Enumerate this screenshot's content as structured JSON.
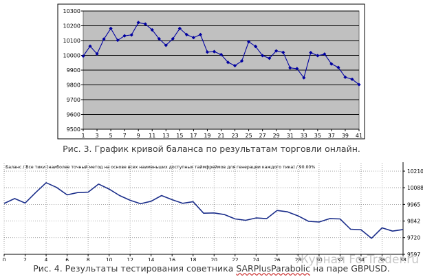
{
  "chart_data": [
    {
      "type": "line",
      "title": "",
      "xlabel": "",
      "ylabel": "",
      "xlim": [
        1,
        41
      ],
      "ylim": [
        9500,
        10300
      ],
      "x_tick_labels": [
        "1",
        "3",
        "5",
        "7",
        "9",
        "11",
        "13",
        "15",
        "17",
        "19",
        "21",
        "23",
        "25",
        "27",
        "29",
        "31",
        "33",
        "35",
        "37",
        "39",
        "41"
      ],
      "y_tick_labels": [
        "9500",
        "9600",
        "9700",
        "9800",
        "9900",
        "10000",
        "10100",
        "10200",
        "10300"
      ],
      "grid": true,
      "plot_background": "#c0c0c0",
      "series": [
        {
          "color": "#0000a0",
          "x": [
            1,
            2,
            3,
            4,
            5,
            6,
            7,
            8,
            9,
            10,
            11,
            12,
            13,
            14,
            15,
            16,
            17,
            18,
            19,
            20,
            21,
            22,
            23,
            24,
            25,
            26,
            27,
            28,
            29,
            30,
            31,
            32,
            33,
            34,
            35,
            36,
            37,
            38,
            39,
            40,
            41
          ],
          "values": [
            9995,
            10062,
            10010,
            10110,
            10182,
            10102,
            10132,
            10138,
            10222,
            10212,
            10172,
            10112,
            10068,
            10112,
            10182,
            10140,
            10120,
            10140,
            10022,
            10025,
            10005,
            9952,
            9930,
            9962,
            10092,
            10060,
            9998,
            9980,
            10030,
            10020,
            9915,
            9910,
            9848,
            10018,
            9998,
            10008,
            9942,
            9918,
            9852,
            9838,
            9802
          ]
        }
      ]
    },
    {
      "type": "line",
      "title": "Баланс / Все тики (наиболее точный метод на основе всех наименьших доступных таймфреймов для генерации каждого тика) / 90.00%",
      "xlabel": "",
      "ylabel": "",
      "xlim": [
        0,
        38
      ],
      "ylim": [
        9597,
        10210
      ],
      "x_tick_labels": [
        "0",
        "2",
        "4",
        "6",
        "8",
        "10",
        "12",
        "14",
        "16",
        "18",
        "20",
        "22",
        "24",
        "26",
        "28",
        "30",
        "32",
        "34",
        "36",
        "38"
      ],
      "y_tick_labels": [
        "9597",
        "9720",
        "9842",
        "9965",
        "10088",
        "10210"
      ],
      "grid": true,
      "grid_style": "dotted",
      "series": [
        {
          "color": "#1a2d8a",
          "x": [
            0,
            1,
            2,
            3,
            4,
            5,
            6,
            7,
            8,
            9,
            10,
            11,
            12,
            13,
            14,
            15,
            16,
            17,
            18,
            19,
            20,
            21,
            22,
            23,
            24,
            25,
            26,
            27,
            28,
            29,
            30,
            31,
            32,
            33,
            34,
            35,
            36,
            37,
            38
          ],
          "values": [
            9972,
            10008,
            9975,
            10052,
            10125,
            10090,
            10035,
            10052,
            10055,
            10115,
            10078,
            10030,
            9995,
            9970,
            9988,
            10030,
            10000,
            9973,
            9985,
            9900,
            9902,
            9890,
            9858,
            9848,
            9865,
            9860,
            9920,
            9910,
            9880,
            9840,
            9835,
            9860,
            9858,
            9782,
            9778,
            9715,
            9792,
            9768,
            9780
          ]
        }
      ]
    }
  ],
  "captions": {
    "fig3": "Рис. 3. График кривой баланса по результатам торговли онлайн.",
    "fig4_before": "Рис. 4. Результаты тестирования советника ",
    "fig4_name": "SARPlusParabolic",
    "fig4_after": " на паре GBPUSD."
  },
  "watermark": "Журнал ForTrader.ru"
}
